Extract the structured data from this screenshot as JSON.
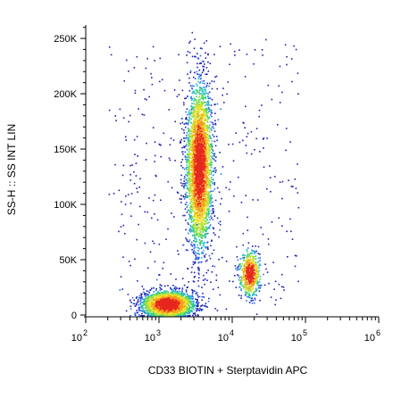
{
  "chart_data": {
    "type": "scatter",
    "title": "",
    "xlabel": "CD33 BIOTIN + Sterptavidin APC",
    "ylabel": "SS-H :: SS INT LIN",
    "x_scale": "log",
    "xlim": [
      100,
      1000000
    ],
    "ylim": [
      0,
      262144
    ],
    "x_ticks": [
      {
        "base": "10",
        "exp": "2",
        "value": 100
      },
      {
        "base": "10",
        "exp": "3",
        "value": 1000
      },
      {
        "base": "10",
        "exp": "4",
        "value": 10000
      },
      {
        "base": "10",
        "exp": "5",
        "value": 100000
      },
      {
        "base": "10",
        "exp": "6",
        "value": 1000000
      }
    ],
    "y_ticks": [
      {
        "label": "0",
        "value": 0
      },
      {
        "label": "50K",
        "value": 50000
      },
      {
        "label": "100K",
        "value": 100000
      },
      {
        "label": "150K",
        "value": 150000
      },
      {
        "label": "200K",
        "value": 200000
      },
      {
        "label": "250K",
        "value": 250000
      }
    ],
    "populations": [
      {
        "x_center": 1300,
        "y_center": 10000,
        "x_spread_decades": 0.17,
        "y_spread": 6000,
        "count": 2600
      },
      {
        "x_center": 3500,
        "y_center": 135000,
        "x_spread_decades": 0.085,
        "y_spread": 36000,
        "count": 3600
      },
      {
        "x_center": 17000,
        "y_center": 38000,
        "x_spread_decades": 0.07,
        "y_spread": 10000,
        "count": 650
      }
    ],
    "density_colors": [
      "#1f1fb4",
      "#2a6cf0",
      "#29b8d6",
      "#2fd07a",
      "#9fe03a",
      "#f2e02a",
      "#f59a1c",
      "#e6261f"
    ],
    "grid": false,
    "legend": "none"
  }
}
